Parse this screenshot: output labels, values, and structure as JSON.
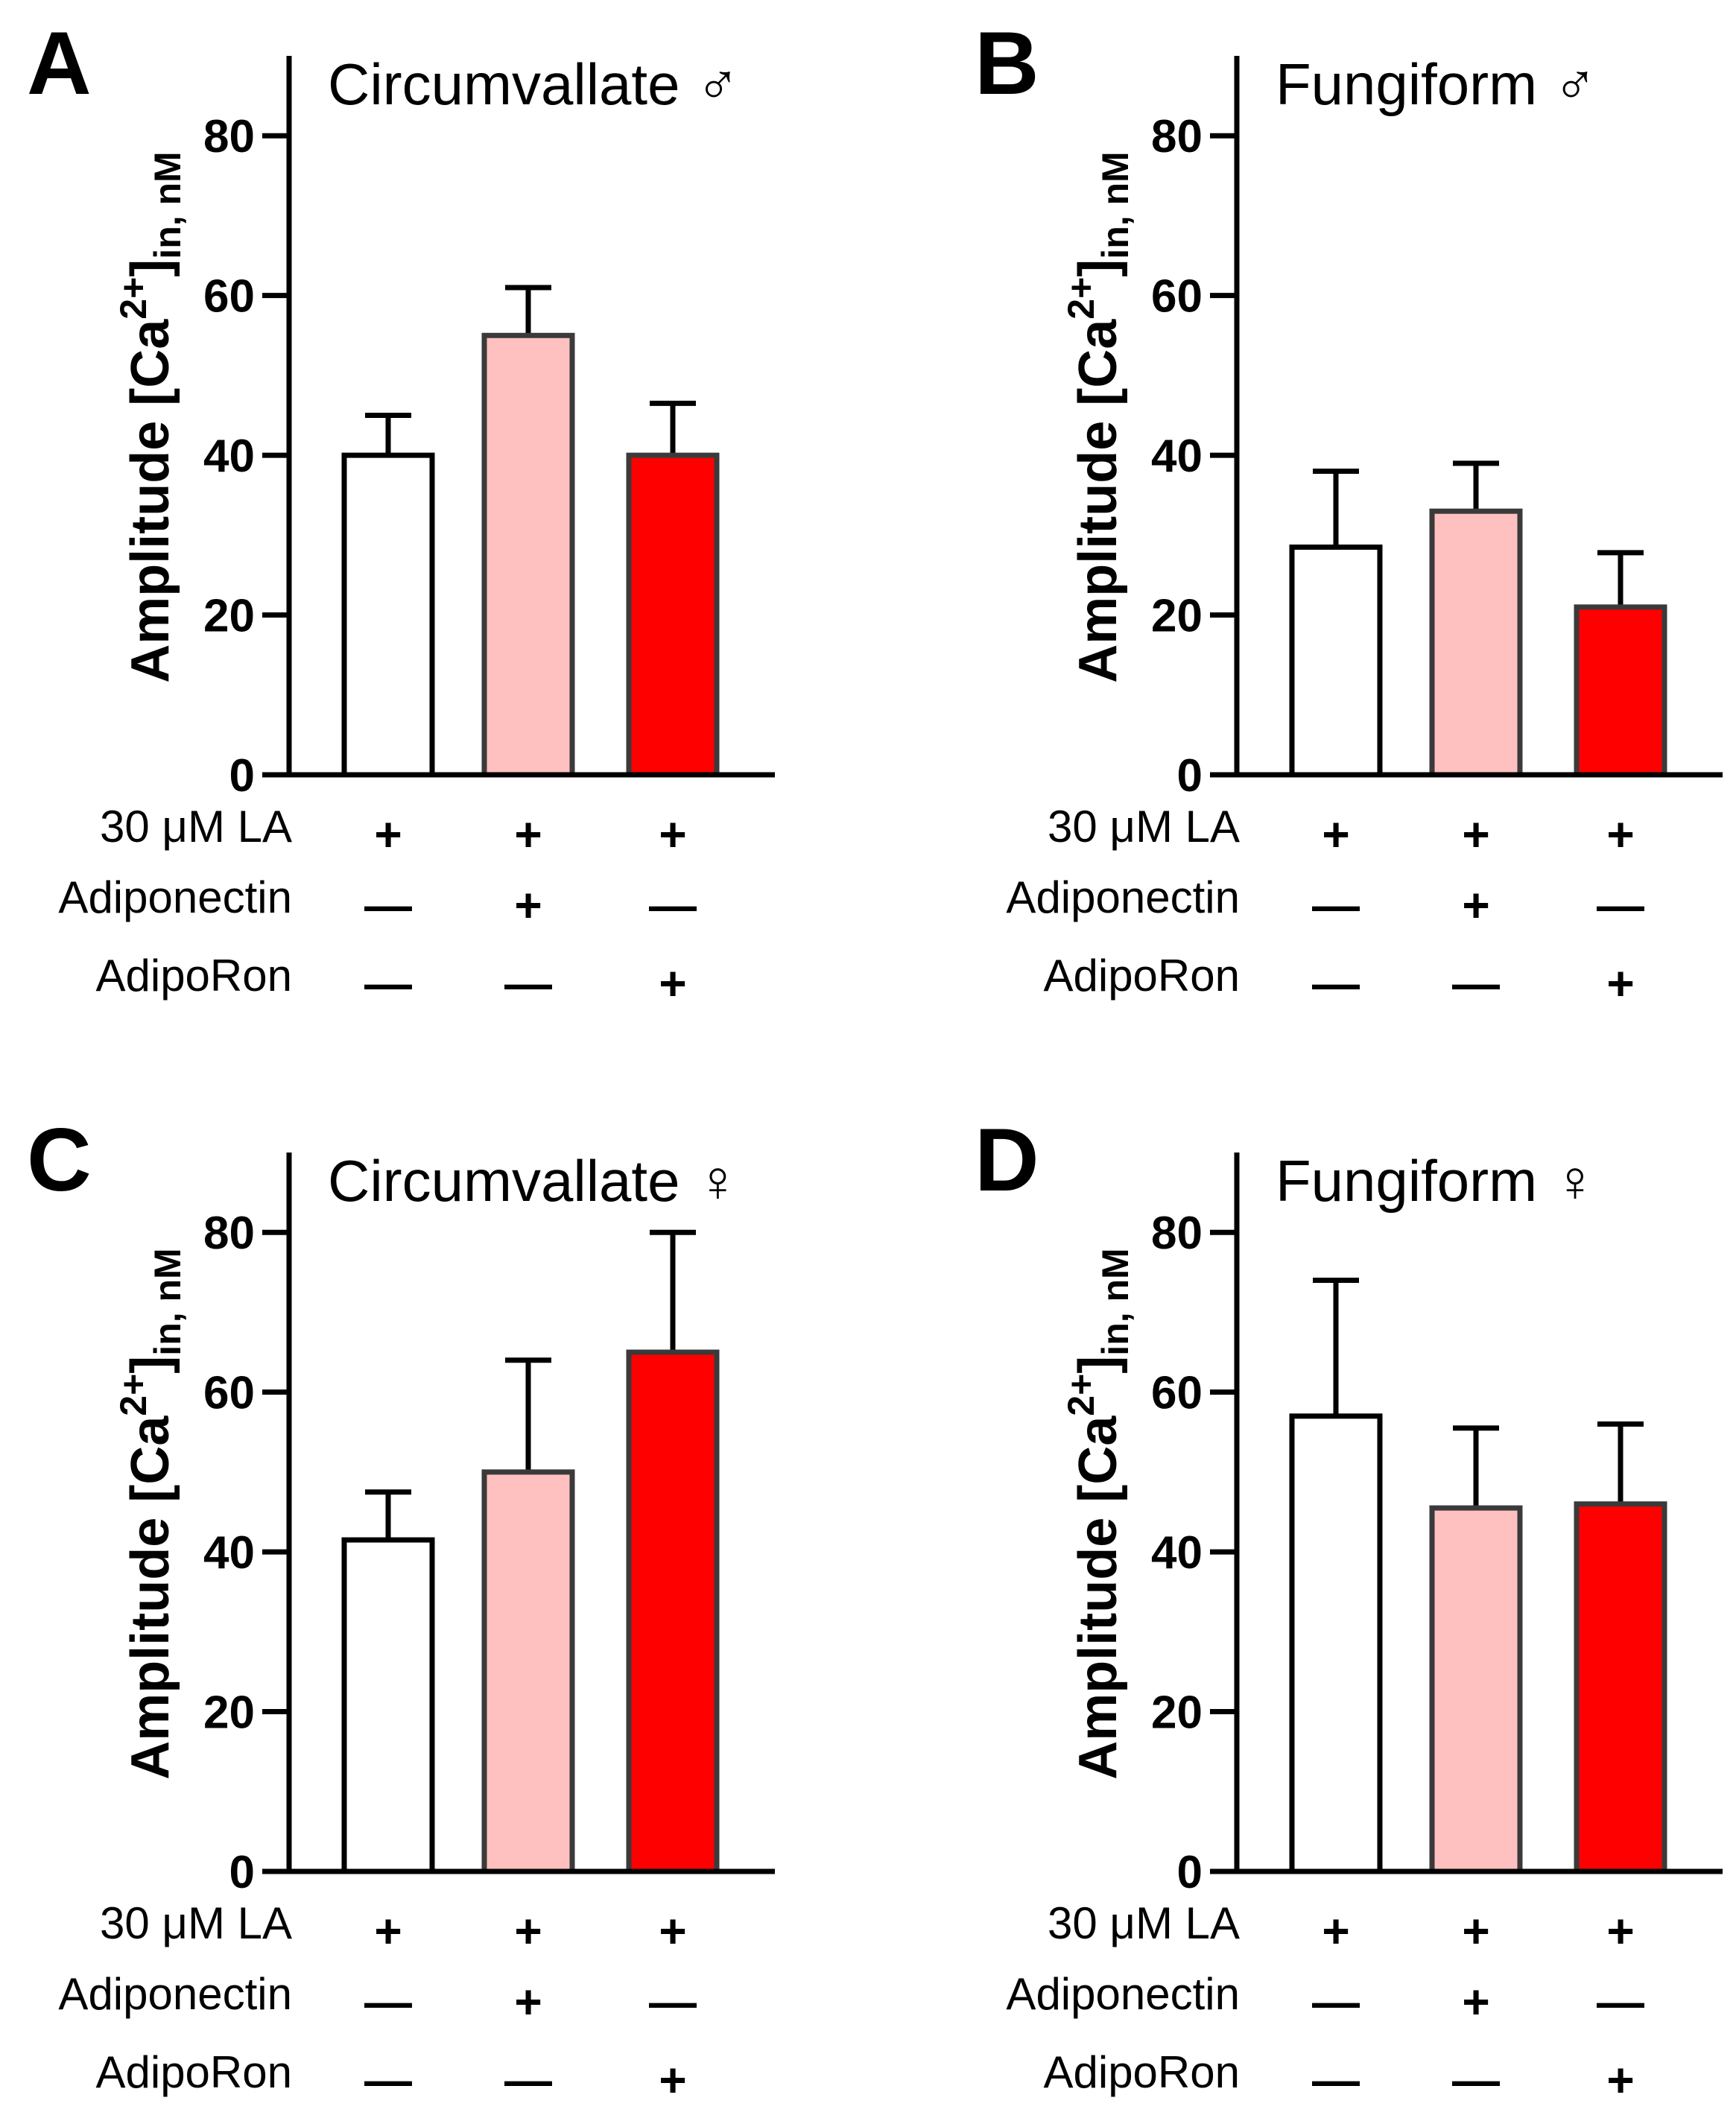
{
  "chart_data": [
    {
      "type": "bar",
      "panel": "A",
      "title": "Circumvallate ♂",
      "ylabel": "Amplitude [Ca2+]in, nM",
      "ylabel_main": "Amplitude [Ca",
      "ylabel_sup": "2+",
      "ylabel_close": "]",
      "ylabel_sub": "in, nM",
      "ylim": [
        0,
        90
      ],
      "yticks": [
        0,
        20,
        40,
        60,
        80
      ],
      "yticks_text": [
        "0",
        "20",
        "40",
        "60",
        "80"
      ],
      "categories": [
        "LA",
        "LA + Adiponectin",
        "LA + AdipoRon"
      ],
      "values": [
        40,
        55,
        40
      ],
      "errors": [
        5,
        6,
        6.5
      ],
      "colors": [
        "#ffffff",
        "#ffc0c0",
        "#ff0000"
      ],
      "condition_rows": [
        {
          "label": "30 μM LA",
          "signs": [
            "+",
            "+",
            "+"
          ]
        },
        {
          "label": "Adiponectin",
          "signs": [
            "—",
            "+",
            "—"
          ]
        },
        {
          "label": "AdipoRon",
          "signs": [
            "—",
            "—",
            "+"
          ]
        }
      ]
    },
    {
      "type": "bar",
      "panel": "B",
      "title": "Fungiform ♂",
      "ylabel": "Amplitude [Ca2+]in, nM",
      "ylabel_main": "Amplitude [Ca",
      "ylabel_sup": "2+",
      "ylabel_close": "]",
      "ylabel_sub": "in, nM",
      "ylim": [
        0,
        90
      ],
      "yticks": [
        0,
        20,
        40,
        60,
        80
      ],
      "yticks_text": [
        "0",
        "20",
        "40",
        "60",
        "80"
      ],
      "categories": [
        "LA",
        "LA + Adiponectin",
        "LA + AdipoRon"
      ],
      "values": [
        28.5,
        33,
        21
      ],
      "errors": [
        9.5,
        6,
        6.8
      ],
      "colors": [
        "#ffffff",
        "#ffc0c0",
        "#ff0000"
      ],
      "condition_rows": [
        {
          "label": "30 μM LA",
          "signs": [
            "+",
            "+",
            "+"
          ]
        },
        {
          "label": "Adiponectin",
          "signs": [
            "—",
            "+",
            "—"
          ]
        },
        {
          "label": "AdipoRon",
          "signs": [
            "—",
            "—",
            "+"
          ]
        }
      ]
    },
    {
      "type": "bar",
      "panel": "C",
      "title": "Circumvallate ♀",
      "ylabel": "Amplitude [Ca2+]in, nM",
      "ylabel_main": "Amplitude [Ca",
      "ylabel_sup": "2+",
      "ylabel_close": "]",
      "ylabel_sub": "in, nM",
      "ylim": [
        0,
        90
      ],
      "yticks": [
        0,
        20,
        40,
        60,
        80
      ],
      "yticks_text": [
        "0",
        "20",
        "40",
        "60",
        "80"
      ],
      "categories": [
        "LA",
        "LA + Adiponectin",
        "LA + AdipoRon"
      ],
      "values": [
        41.5,
        50,
        65
      ],
      "errors": [
        6,
        14,
        15
      ],
      "colors": [
        "#ffffff",
        "#ffc0c0",
        "#ff0000"
      ],
      "condition_rows": [
        {
          "label": "30 μM LA",
          "signs": [
            "+",
            "+",
            "+"
          ]
        },
        {
          "label": "Adiponectin",
          "signs": [
            "—",
            "+",
            "—"
          ]
        },
        {
          "label": "AdipoRon",
          "signs": [
            "—",
            "—",
            "+"
          ]
        }
      ]
    },
    {
      "type": "bar",
      "panel": "D",
      "title": "Fungiform ♀",
      "ylabel": "Amplitude [Ca2+]in, nM",
      "ylabel_main": "Amplitude [Ca",
      "ylabel_sup": "2+",
      "ylabel_close": "]",
      "ylabel_sub": "in, nM",
      "ylim": [
        0,
        90
      ],
      "yticks": [
        0,
        20,
        40,
        60,
        80
      ],
      "yticks_text": [
        "0",
        "20",
        "40",
        "60",
        "80"
      ],
      "categories": [
        "LA",
        "LA + Adiponectin",
        "LA + AdipoRon"
      ],
      "values": [
        57,
        45.5,
        46
      ],
      "errors": [
        17,
        10,
        10
      ],
      "colors": [
        "#ffffff",
        "#ffc0c0",
        "#ff0000"
      ],
      "condition_rows": [
        {
          "label": "30 μM LA",
          "signs": [
            "+",
            "+",
            "+"
          ]
        },
        {
          "label": "Adiponectin",
          "signs": [
            "—",
            "+",
            "—"
          ]
        },
        {
          "label": "AdipoRon",
          "signs": [
            "—",
            "—",
            "+"
          ]
        }
      ]
    }
  ]
}
